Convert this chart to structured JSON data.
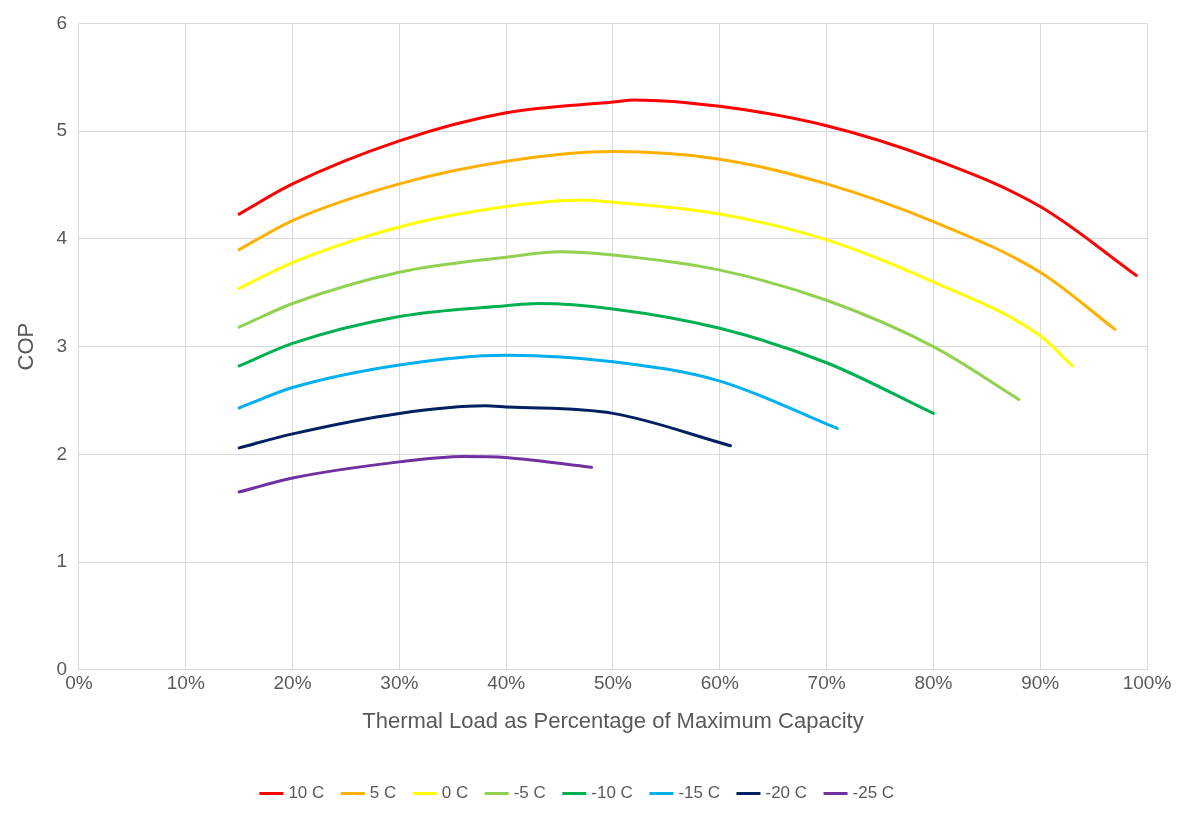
{
  "chart_data": {
    "type": "line",
    "xlabel": "Thermal Load as Percentage of Maximum Capacity",
    "ylabel": "COP",
    "xlim": [
      0,
      100
    ],
    "xticks": [
      {
        "value": 0,
        "label": "0%"
      },
      {
        "value": 10,
        "label": "10%"
      },
      {
        "value": 20,
        "label": "20%"
      },
      {
        "value": 30,
        "label": "30%"
      },
      {
        "value": 40,
        "label": "40%"
      },
      {
        "value": 50,
        "label": "50%"
      },
      {
        "value": 60,
        "label": "60%"
      },
      {
        "value": 70,
        "label": "70%"
      },
      {
        "value": 80,
        "label": "80%"
      },
      {
        "value": 90,
        "label": "90%"
      },
      {
        "value": 100,
        "label": "100%"
      }
    ],
    "ylim": [
      0,
      6
    ],
    "yticks": [
      0,
      1,
      2,
      3,
      4,
      5,
      6
    ],
    "grid": true,
    "legend": "bottom",
    "marker": "none",
    "series": [
      {
        "name": "10 C",
        "color": "#ff0000",
        "x": [
          15,
          20,
          30,
          40,
          50,
          52,
          60,
          70,
          80,
          90,
          99
        ],
        "values": [
          4.23,
          4.51,
          4.91,
          5.17,
          5.27,
          5.29,
          5.23,
          5.05,
          4.74,
          4.3,
          3.66
        ]
      },
      {
        "name": "5 C",
        "color": "#ffb000",
        "x": [
          15,
          20,
          30,
          40,
          50,
          60,
          70,
          80,
          90,
          97
        ],
        "values": [
          3.9,
          4.17,
          4.51,
          4.72,
          4.81,
          4.74,
          4.51,
          4.16,
          3.69,
          3.16
        ]
      },
      {
        "name": "0 C",
        "color": "#ffff00",
        "x": [
          15,
          20,
          30,
          40,
          47,
          50,
          60,
          70,
          80,
          90,
          93
        ],
        "values": [
          3.54,
          3.78,
          4.11,
          4.3,
          4.36,
          4.34,
          4.23,
          3.99,
          3.6,
          3.1,
          2.82
        ]
      },
      {
        "name": "-5 C",
        "color": "#92d050",
        "x": [
          15,
          20,
          30,
          40,
          45,
          50,
          60,
          70,
          80,
          88
        ],
        "values": [
          3.18,
          3.4,
          3.69,
          3.83,
          3.88,
          3.85,
          3.71,
          3.43,
          3.0,
          2.51
        ]
      },
      {
        "name": "-10 C",
        "color": "#00b050",
        "x": [
          15,
          20,
          30,
          40,
          43,
          50,
          60,
          70,
          80
        ],
        "values": [
          2.82,
          3.03,
          3.28,
          3.38,
          3.4,
          3.35,
          3.17,
          2.85,
          2.38
        ]
      },
      {
        "name": "-15 C",
        "color": "#00b0f0",
        "x": [
          15,
          20,
          30,
          40,
          50,
          60,
          71
        ],
        "values": [
          2.43,
          2.62,
          2.83,
          2.92,
          2.86,
          2.68,
          2.24
        ]
      },
      {
        "name": "-20 C",
        "color": "#002060",
        "x": [
          15,
          20,
          30,
          38,
          40,
          50,
          61
        ],
        "values": [
          2.06,
          2.19,
          2.38,
          2.45,
          2.44,
          2.38,
          2.08
        ]
      },
      {
        "name": "-25 C",
        "color": "#7030a0",
        "x": [
          15,
          20,
          30,
          36,
          40,
          48
        ],
        "values": [
          1.65,
          1.78,
          1.93,
          1.98,
          1.97,
          1.88
        ]
      }
    ]
  }
}
